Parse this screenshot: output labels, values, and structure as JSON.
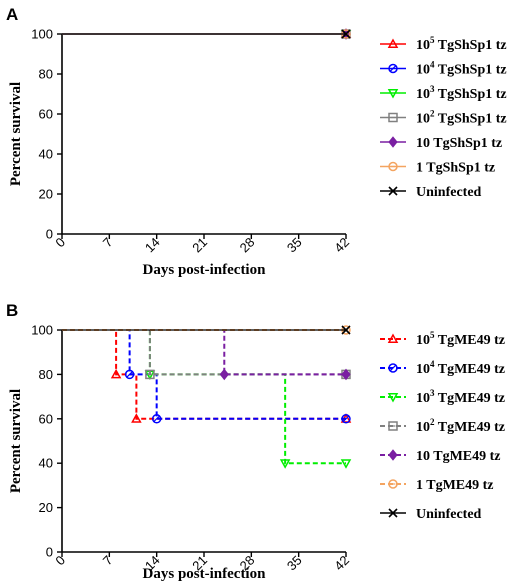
{
  "chart_data": [
    {
      "panel": "A",
      "type": "line",
      "step": true,
      "xlabel": "Days post-infection",
      "ylabel": "Percent survival",
      "xlim": [
        0,
        42
      ],
      "ylim": [
        0,
        100
      ],
      "xticks": [
        0,
        7,
        14,
        21,
        28,
        35,
        42
      ],
      "yticks": [
        0,
        20,
        40,
        60,
        80,
        100
      ],
      "grid": false,
      "legend_position": "right",
      "series": [
        {
          "name_base": "10",
          "name_exp": "5",
          "name_rest": " TgShSp1 tz",
          "color": "#ff0000",
          "marker": "triangle-up",
          "dash": false,
          "points": [
            [
              0,
              100
            ],
            [
              42,
              100
            ]
          ]
        },
        {
          "name_base": "10",
          "name_exp": "4",
          "name_rest": " TgShSp1 tz",
          "color": "#0000ff",
          "marker": "circle",
          "dash": false,
          "points": [
            [
              0,
              100
            ],
            [
              42,
              100
            ]
          ]
        },
        {
          "name_base": "10",
          "name_exp": "3",
          "name_rest": " TgShSp1 tz",
          "color": "#00ee00",
          "marker": "triangle-down",
          "dash": false,
          "points": [
            [
              0,
              100
            ],
            [
              42,
              100
            ]
          ]
        },
        {
          "name_base": "10",
          "name_exp": "2",
          "name_rest": " TgShSp1 tz",
          "color": "#808080",
          "marker": "square",
          "dash": false,
          "points": [
            [
              0,
              100
            ],
            [
              42,
              100
            ]
          ]
        },
        {
          "name_base": "10 TgShSp1 tz",
          "name_exp": "",
          "name_rest": "",
          "color": "#7a1fa2",
          "marker": "diamond",
          "dash": false,
          "points": [
            [
              0,
              100
            ],
            [
              42,
              100
            ]
          ]
        },
        {
          "name_base": "1 TgShSp1 tz",
          "name_exp": "",
          "name_rest": "",
          "color": "#f4a460",
          "marker": "circle-dot",
          "dash": false,
          "points": [
            [
              0,
              100
            ],
            [
              42,
              100
            ]
          ]
        },
        {
          "name_base": "Uninfected",
          "name_exp": "",
          "name_rest": "",
          "color": "#000000",
          "marker": "x",
          "dash": false,
          "points": [
            [
              0,
              100
            ],
            [
              42,
              100
            ]
          ]
        }
      ]
    },
    {
      "panel": "B",
      "type": "line",
      "step": true,
      "xlabel": "Days post-infection",
      "ylabel": "Percent survival",
      "xlim": [
        0,
        42
      ],
      "ylim": [
        0,
        100
      ],
      "xticks": [
        0,
        7,
        14,
        21,
        28,
        35,
        42
      ],
      "yticks": [
        0,
        20,
        40,
        60,
        80,
        100
      ],
      "grid": false,
      "legend_position": "right",
      "series": [
        {
          "name_base": "10",
          "name_exp": "5",
          "name_rest": " TgME49 tz",
          "color": "#ff0000",
          "marker": "triangle-up",
          "dash": true,
          "points": [
            [
              0,
              100
            ],
            [
              8,
              80
            ],
            [
              11,
              60
            ],
            [
              42,
              60
            ]
          ]
        },
        {
          "name_base": "10",
          "name_exp": "4",
          "name_rest": " TgME49 tz",
          "color": "#0000ff",
          "marker": "circle",
          "dash": true,
          "points": [
            [
              0,
              100
            ],
            [
              10,
              80
            ],
            [
              14,
              60
            ],
            [
              42,
              60
            ]
          ]
        },
        {
          "name_base": "10",
          "name_exp": "3",
          "name_rest": " TgME49 tz",
          "color": "#00ee00",
          "marker": "triangle-down",
          "dash": true,
          "points": [
            [
              0,
              100
            ],
            [
              13,
              80
            ],
            [
              33,
              40
            ],
            [
              42,
              40
            ]
          ]
        },
        {
          "name_base": "10",
          "name_exp": "2",
          "name_rest": " TgME49 tz",
          "color": "#808080",
          "marker": "square",
          "dash": true,
          "points": [
            [
              0,
              100
            ],
            [
              13,
              80
            ],
            [
              42,
              80
            ]
          ]
        },
        {
          "name_base": "10 TgME49 tz",
          "name_exp": "",
          "name_rest": "",
          "color": "#7a1fa2",
          "marker": "diamond",
          "dash": true,
          "points": [
            [
              0,
              100
            ],
            [
              24,
              80
            ],
            [
              42,
              80
            ]
          ]
        },
        {
          "name_base": "1 TgME49 tz",
          "name_exp": "",
          "name_rest": "",
          "color": "#f4a460",
          "marker": "circle-dot",
          "dash": true,
          "points": [
            [
              0,
              100
            ],
            [
              42,
              100
            ]
          ]
        },
        {
          "name_base": "Uninfected",
          "name_exp": "",
          "name_rest": "",
          "color": "#000000",
          "marker": "x",
          "dash": false,
          "points": [
            [
              0,
              100
            ],
            [
              42,
              100
            ]
          ]
        }
      ]
    }
  ]
}
